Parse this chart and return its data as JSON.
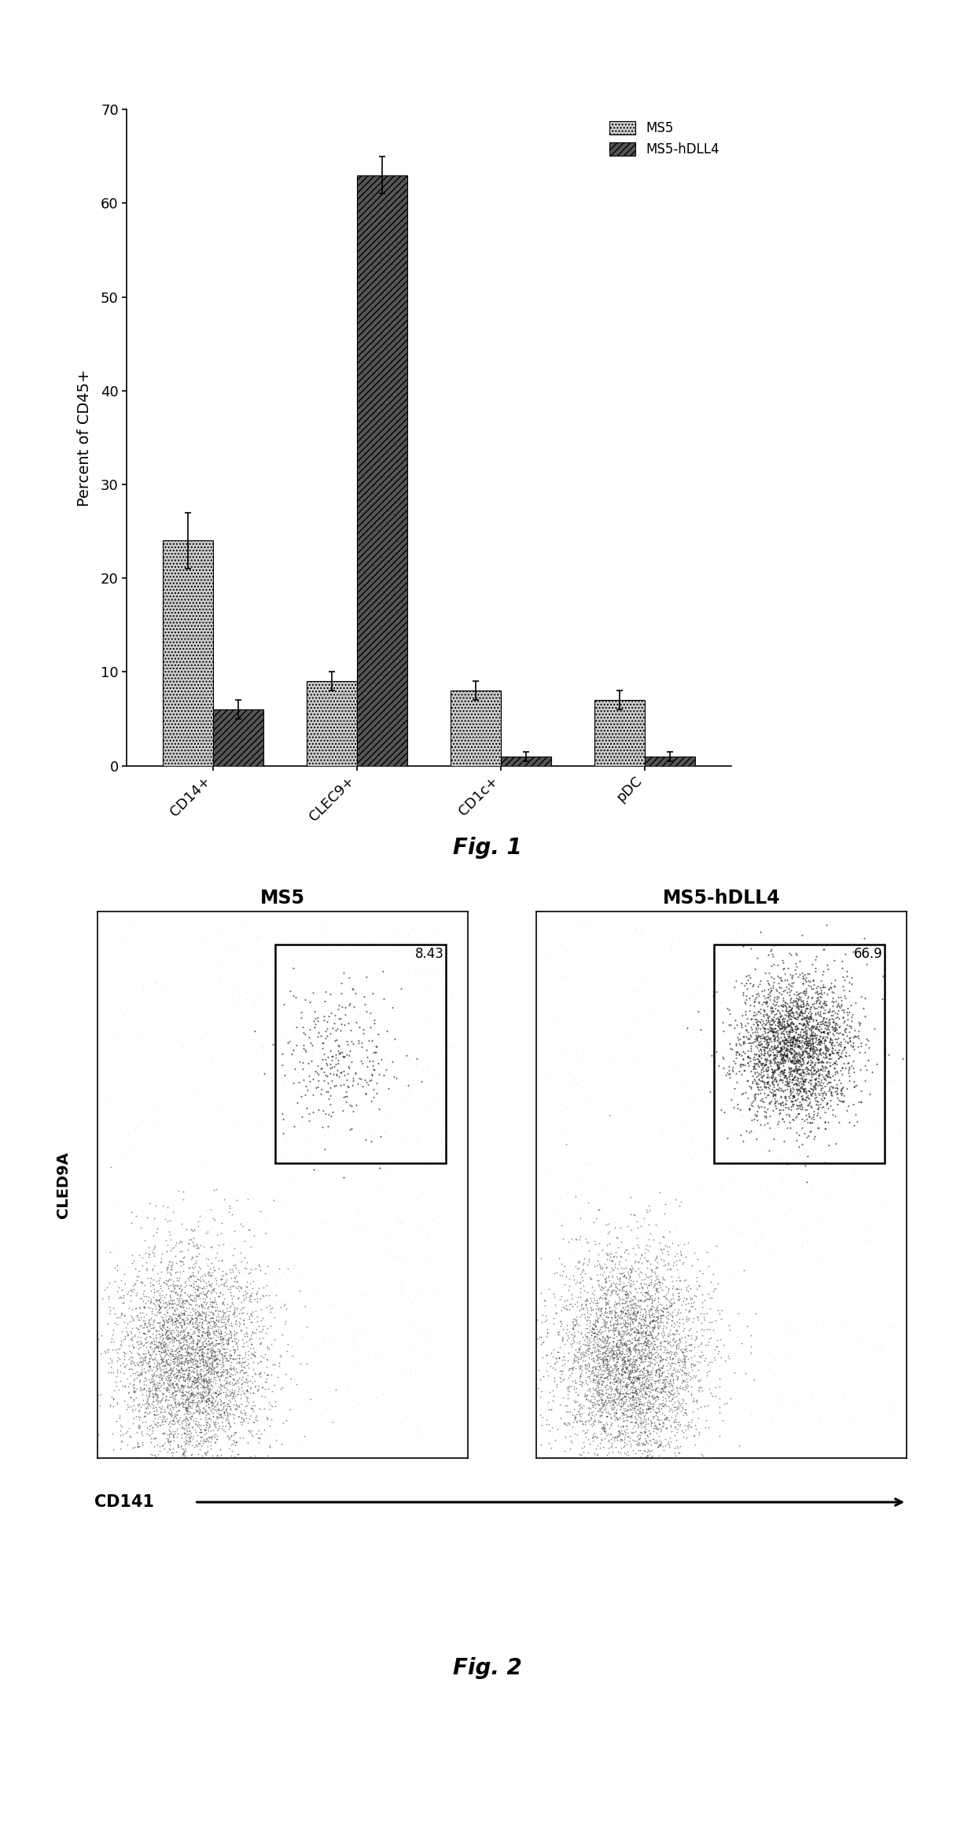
{
  "fig1": {
    "categories": [
      "CD14+",
      "CLEC9+",
      "CD1c+",
      "pDC"
    ],
    "ms5_values": [
      24,
      9,
      8,
      7
    ],
    "ms5hdll4_values": [
      6,
      63,
      1,
      1
    ],
    "ms5_errors": [
      3,
      1,
      1,
      1
    ],
    "ms5hdll4_errors": [
      1,
      2,
      0.5,
      0.5
    ],
    "ylabel": "Percent of CD45+",
    "ylim": [
      0,
      70
    ],
    "yticks": [
      0,
      10,
      20,
      30,
      40,
      50,
      60,
      70
    ],
    "ms5_color": "#cccccc",
    "ms5hdll4_color": "#555555",
    "ms5_hatch": "....",
    "ms5hdll4_hatch": "////",
    "legend_ms5": "MS5",
    "legend_ms5hdll4": "MS5-hDLL4",
    "fig_label": "Fig. 1"
  },
  "fig2": {
    "ms5_label": "MS5",
    "ms5hdll4_label": "MS5-hDLL4",
    "ms5_gate_value": "8.43",
    "ms5hdll4_gate_value": "66.9",
    "xlabel": "CD141",
    "ylabel": "CLED9A",
    "fig_label": "Fig. 2"
  }
}
